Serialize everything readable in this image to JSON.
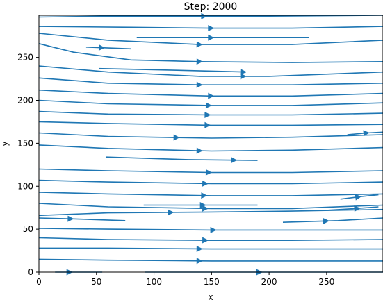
{
  "chart_data": {
    "type": "streamplot",
    "title": "Step: 2000",
    "xlabel": "x",
    "ylabel": "y",
    "xlim": [
      0,
      299
    ],
    "ylim": [
      0,
      299
    ],
    "xticks": [
      0,
      50,
      100,
      150,
      200,
      250
    ],
    "yticks": [
      0,
      50,
      100,
      150,
      200,
      250
    ],
    "grid": false,
    "colors": {
      "streamline": "#1f77b4",
      "axis": "#000000"
    },
    "streamlines": [
      {
        "points": [
          [
            0,
            297
          ],
          [
            60,
            298
          ],
          [
            140,
            298
          ],
          [
            200,
            298
          ],
          [
            299,
            299
          ]
        ],
        "arrow_x": 144
      },
      {
        "points": [
          [
            0,
            286
          ],
          [
            80,
            285
          ],
          [
            150,
            284
          ],
          [
            220,
            284
          ],
          [
            299,
            286
          ]
        ],
        "arrow_x": 150
      },
      {
        "points": [
          [
            85,
            273
          ],
          [
            140,
            273
          ],
          [
            235,
            273
          ]
        ],
        "arrow_x": 150
      },
      {
        "points": [
          [
            0,
            278
          ],
          [
            60,
            270
          ],
          [
            140,
            265
          ],
          [
            220,
            265
          ],
          [
            299,
            270
          ]
        ],
        "arrow_x": 140
      },
      {
        "points": [
          [
            41,
            262
          ],
          [
            80,
            260
          ]
        ],
        "arrow_x": 55
      },
      {
        "points": [
          [
            0,
            266
          ],
          [
            30,
            256
          ],
          [
            80,
            247
          ],
          [
            140,
            245
          ],
          [
            220,
            244
          ],
          [
            299,
            245
          ]
        ],
        "arrow_x": 140
      },
      {
        "points": [
          [
            0,
            240
          ],
          [
            60,
            233
          ],
          [
            140,
            228
          ],
          [
            200,
            228
          ],
          [
            299,
            233
          ]
        ],
        "arrow_x": 178
      },
      {
        "points": [
          [
            52,
            237
          ],
          [
            120,
            235
          ],
          [
            180,
            233
          ]
        ],
        "arrow_x": 178
      },
      {
        "points": [
          [
            0,
            226
          ],
          [
            60,
            220
          ],
          [
            140,
            218
          ],
          [
            220,
            218
          ],
          [
            299,
            220
          ]
        ],
        "arrow_x": 140
      },
      {
        "points": [
          [
            0,
            212
          ],
          [
            60,
            208
          ],
          [
            150,
            205
          ],
          [
            220,
            205
          ],
          [
            299,
            208
          ]
        ],
        "arrow_x": 150
      },
      {
        "points": [
          [
            0,
            200
          ],
          [
            60,
            196
          ],
          [
            150,
            194
          ],
          [
            220,
            194
          ],
          [
            299,
            197
          ]
        ],
        "arrow_x": 148
      },
      {
        "points": [
          [
            0,
            187
          ],
          [
            60,
            184
          ],
          [
            150,
            183
          ],
          [
            220,
            183
          ],
          [
            299,
            185
          ]
        ],
        "arrow_x": 147
      },
      {
        "points": [
          [
            0,
            175
          ],
          [
            60,
            173
          ],
          [
            150,
            171
          ],
          [
            220,
            171
          ],
          [
            299,
            172
          ]
        ],
        "arrow_x": 147
      },
      {
        "points": [
          [
            0,
            162
          ],
          [
            60,
            158
          ],
          [
            150,
            156
          ],
          [
            220,
            157
          ],
          [
            299,
            160
          ]
        ],
        "arrow_x": 120
      },
      {
        "points": [
          [
            268,
            160
          ],
          [
            285,
            162
          ],
          [
            299,
            163
          ]
        ],
        "arrow_x": 285
      },
      {
        "points": [
          [
            0,
            148
          ],
          [
            60,
            144
          ],
          [
            150,
            141
          ],
          [
            220,
            142
          ],
          [
            299,
            145
          ]
        ],
        "arrow_x": 140
      },
      {
        "points": [
          [
            58,
            134
          ],
          [
            130,
            131
          ],
          [
            190,
            130
          ]
        ],
        "arrow_x": 170
      },
      {
        "points": [
          [
            0,
            120
          ],
          [
            60,
            118
          ],
          [
            150,
            116
          ],
          [
            220,
            116
          ],
          [
            299,
            118
          ]
        ],
        "arrow_x": 148
      },
      {
        "points": [
          [
            0,
            107
          ],
          [
            60,
            105
          ],
          [
            150,
            103
          ],
          [
            220,
            103
          ],
          [
            299,
            105
          ]
        ],
        "arrow_x": 145
      },
      {
        "points": [
          [
            0,
            93
          ],
          [
            60,
            91
          ],
          [
            150,
            89
          ],
          [
            220,
            89
          ],
          [
            299,
            91
          ]
        ],
        "arrow_x": 144
      },
      {
        "points": [
          [
            0,
            80
          ],
          [
            60,
            76
          ],
          [
            150,
            74
          ],
          [
            220,
            74
          ],
          [
            299,
            78
          ]
        ],
        "arrow_x": 145
      },
      {
        "points": [
          [
            91,
            78
          ],
          [
            150,
            78
          ],
          [
            190,
            78
          ]
        ],
        "arrow_x": 143
      },
      {
        "points": [
          [
            0,
            66
          ],
          [
            60,
            69
          ],
          [
            150,
            70
          ],
          [
            220,
            71
          ],
          [
            299,
            73
          ]
        ],
        "arrow_x": 115
      },
      {
        "points": [
          [
            250,
            72
          ],
          [
            275,
            74
          ],
          [
            295,
            76
          ]
        ],
        "arrow_x": 277
      },
      {
        "points": [
          [
            262,
            85
          ],
          [
            280,
            88
          ],
          [
            295,
            90
          ]
        ],
        "arrow_x": 278
      },
      {
        "points": [
          [
            0,
            63
          ],
          [
            30,
            62
          ],
          [
            75,
            60
          ]
        ],
        "arrow_x": 28
      },
      {
        "points": [
          [
            212,
            58
          ],
          [
            260,
            60
          ],
          [
            299,
            63
          ]
        ],
        "arrow_x": 250
      },
      {
        "points": [
          [
            0,
            51
          ],
          [
            60,
            50
          ],
          [
            150,
            49
          ],
          [
            220,
            49
          ],
          [
            299,
            49
          ]
        ],
        "arrow_x": 152
      },
      {
        "points": [
          [
            0,
            40
          ],
          [
            60,
            38
          ],
          [
            150,
            37
          ],
          [
            220,
            37
          ],
          [
            299,
            38
          ]
        ],
        "arrow_x": 145
      },
      {
        "points": [
          [
            0,
            28
          ],
          [
            60,
            28
          ],
          [
            150,
            27
          ],
          [
            220,
            27
          ],
          [
            299,
            27
          ]
        ],
        "arrow_x": 140
      },
      {
        "points": [
          [
            0,
            15
          ],
          [
            60,
            14
          ],
          [
            150,
            13
          ],
          [
            220,
            13
          ],
          [
            299,
            13
          ]
        ],
        "arrow_x": 140
      },
      {
        "points": [
          [
            14,
            0
          ],
          [
            55,
            0
          ]
        ],
        "arrow_x": 27
      },
      {
        "points": [
          [
            92,
            0
          ],
          [
            190,
            0
          ],
          [
            299,
            0
          ]
        ],
        "arrow_x": 192
      }
    ]
  }
}
